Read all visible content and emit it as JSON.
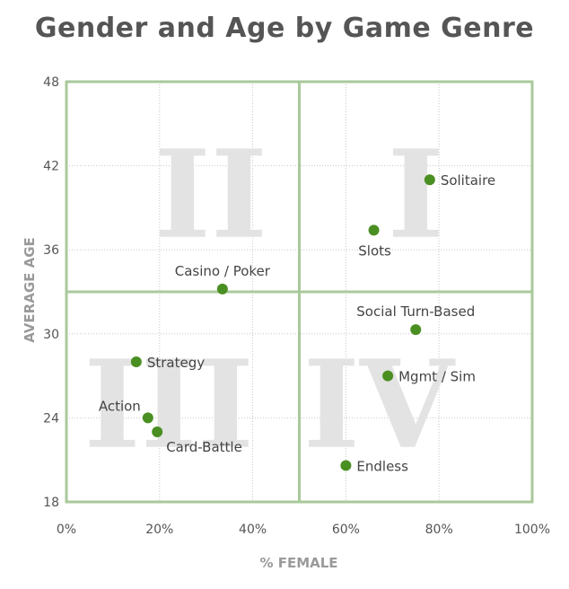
{
  "colors": {
    "point": "#4a8f22",
    "frame": "#a9c99b",
    "grid": "#c8c8c8",
    "quadrant_numeral": "#e3e3e3"
  },
  "chart_data": {
    "type": "scatter",
    "title": "Gender and Age by Game Genre",
    "xlabel": "% FEMALE",
    "ylabel": "AVERAGE AGE",
    "xlim": [
      0,
      100
    ],
    "ylim": [
      18,
      48
    ],
    "x_ticks": [
      0,
      20,
      40,
      60,
      80,
      100
    ],
    "x_tick_labels": [
      "0%",
      "20%",
      "40%",
      "60%",
      "80%",
      "100%"
    ],
    "y_ticks": [
      18,
      24,
      30,
      36,
      42,
      48
    ],
    "y_tick_labels": [
      "18",
      "24",
      "30",
      "36",
      "42",
      "48"
    ],
    "divider_x": 50,
    "divider_y": 33,
    "quadrants": [
      {
        "numeral": "I",
        "cx": 75,
        "cy": 40
      },
      {
        "numeral": "II",
        "cx": 31,
        "cy": 40
      },
      {
        "numeral": "III",
        "cx": 22,
        "cy": 25
      },
      {
        "numeral": "IV",
        "cx": 67,
        "cy": 25
      }
    ],
    "points": [
      {
        "label": "Solitaire",
        "x": 78,
        "y": 41,
        "label_pos": "right"
      },
      {
        "label": "Slots",
        "x": 66,
        "y": 37.4,
        "label_pos": "below"
      },
      {
        "label": "Casino / Poker",
        "x": 33.5,
        "y": 33.2,
        "label_pos": "above"
      },
      {
        "label": "Social Turn-Based",
        "x": 75,
        "y": 30.3,
        "label_pos": "above"
      },
      {
        "label": "Mgmt / Sim",
        "x": 69,
        "y": 27,
        "label_pos": "right"
      },
      {
        "label": "Strategy",
        "x": 15,
        "y": 28,
        "label_pos": "right"
      },
      {
        "label": "Action",
        "x": 17.5,
        "y": 24,
        "label_pos": "upper-left"
      },
      {
        "label": "Card-Battle",
        "x": 19.5,
        "y": 23,
        "label_pos": "lower-right"
      },
      {
        "label": "Endless",
        "x": 60,
        "y": 20.6,
        "label_pos": "right"
      }
    ]
  }
}
